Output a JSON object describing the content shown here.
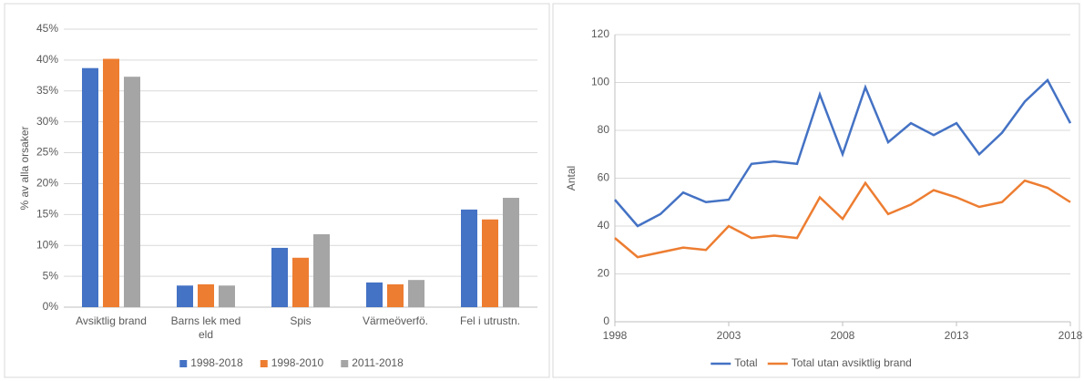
{
  "chart_data": [
    {
      "type": "bar",
      "ylabel": "% av alla orsaker",
      "categories": [
        "Avsiktlig brand",
        "Barns lek med eld",
        "Spis",
        "Värmeöverfö.",
        "Fel i utrustn."
      ],
      "series": [
        {
          "name": "1998-2018",
          "color": "#4472c4",
          "values": [
            38.7,
            3.5,
            9.6,
            4.0,
            15.8
          ]
        },
        {
          "name": "1998-2010",
          "color": "#ed7d31",
          "values": [
            40.2,
            3.7,
            8.0,
            3.7,
            14.2
          ]
        },
        {
          "name": "2011-2018",
          "color": "#a5a5a5",
          "values": [
            37.3,
            3.5,
            11.8,
            4.4,
            17.7
          ]
        }
      ],
      "ylim": [
        0,
        45
      ],
      "yticks": [
        {
          "value": 0,
          "label": "0%"
        },
        {
          "value": 5,
          "label": "5%"
        },
        {
          "value": 10,
          "label": "10%"
        },
        {
          "value": 15,
          "label": "15%"
        },
        {
          "value": 20,
          "label": "20%"
        },
        {
          "value": 25,
          "label": "25%"
        },
        {
          "value": 30,
          "label": "30%"
        },
        {
          "value": 35,
          "label": "35%"
        },
        {
          "value": 40,
          "label": "40%"
        },
        {
          "value": 45,
          "label": "45%"
        }
      ],
      "grid": true,
      "legend": "bottom"
    },
    {
      "type": "line",
      "ylabel": "Antal",
      "x": [
        1998,
        1999,
        2000,
        2001,
        2002,
        2003,
        2004,
        2005,
        2006,
        2007,
        2008,
        2009,
        2010,
        2011,
        2012,
        2013,
        2014,
        2015,
        2016,
        2017,
        2018
      ],
      "series": [
        {
          "name": "Total",
          "color": "#4472c4",
          "values": [
            51,
            40,
            45,
            54,
            50,
            51,
            66,
            67,
            66,
            95,
            70,
            98,
            75,
            83,
            78,
            83,
            70,
            79,
            92,
            101,
            83
          ]
        },
        {
          "name": "Total utan avsiktlig brand",
          "color": "#ed7d31",
          "values": [
            35,
            27,
            29,
            31,
            30,
            40,
            35,
            36,
            35,
            52,
            43,
            58,
            45,
            49,
            55,
            52,
            48,
            50,
            59,
            56,
            50
          ]
        }
      ],
      "xlim": [
        1998,
        2018
      ],
      "xticks": [
        1998,
        2003,
        2008,
        2013,
        2018
      ],
      "ylim": [
        0,
        120
      ],
      "yticks": [
        0,
        20,
        40,
        60,
        80,
        100,
        120
      ],
      "grid": true,
      "legend": "bottom"
    }
  ]
}
